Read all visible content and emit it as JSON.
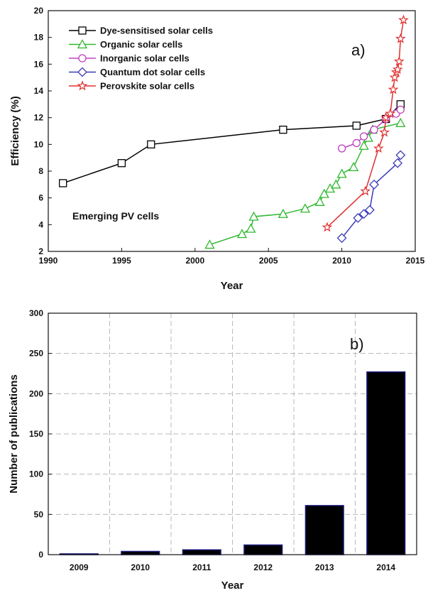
{
  "chart_data": [
    {
      "type": "line",
      "panel_label": "a)",
      "xlabel": "Year",
      "ylabel": "Efficiency (%)",
      "xlim": [
        1990,
        2015
      ],
      "ylim": [
        2,
        20
      ],
      "xticks": [
        1990,
        1995,
        2000,
        2005,
        2010,
        2015
      ],
      "yticks": [
        2,
        4,
        6,
        8,
        10,
        12,
        14,
        16,
        18,
        20
      ],
      "grid": false,
      "legend_position": "top-left",
      "annotation": "Emerging PV cells",
      "series": [
        {
          "name": "Dye-sensitised solar cells",
          "color": "#000000",
          "marker": "square",
          "x": [
            1991,
            1995,
            1997,
            2006,
            2011,
            2013,
            2014
          ],
          "y": [
            7.1,
            8.6,
            10.0,
            11.1,
            11.4,
            11.9,
            13.0
          ]
        },
        {
          "name": "Organic  solar cells",
          "color": "#2eb82e",
          "marker": "triangle",
          "x": [
            2001,
            2003.2,
            2003.8,
            2004,
            2006,
            2007.5,
            2008.5,
            2008.8,
            2009.2,
            2009.6,
            2010,
            2010.8,
            2011.5,
            2011.8,
            2012.1,
            2014
          ],
          "y": [
            2.5,
            3.3,
            3.7,
            4.6,
            4.8,
            5.2,
            5.7,
            6.3,
            6.7,
            7.0,
            7.8,
            8.3,
            9.9,
            10.5,
            11.1,
            11.6
          ]
        },
        {
          "name": "Inorganic solar cells",
          "color": "#c040c0",
          "marker": "circle",
          "x": [
            2010,
            2011,
            2011.5,
            2012.2,
            2013,
            2013.7,
            2014
          ],
          "y": [
            9.7,
            10.1,
            10.6,
            11.1,
            11.9,
            12.3,
            12.6
          ]
        },
        {
          "name": "Quantum dot solar cells",
          "color": "#3a3ab8",
          "marker": "diamond",
          "x": [
            2010,
            2011.1,
            2011.5,
            2011.9,
            2012.2,
            2013.8,
            2014
          ],
          "y": [
            3.0,
            4.5,
            4.8,
            5.1,
            7.0,
            8.6,
            9.2
          ]
        },
        {
          "name": "Perovskite solar cells",
          "color": "#e03030",
          "marker": "star",
          "x": [
            2009,
            2011.6,
            2012.5,
            2012.9,
            2013,
            2013.3,
            2013.5,
            2013.6,
            2013.7,
            2013.8,
            2013.9,
            2014,
            2014.2
          ],
          "y": [
            3.8,
            6.5,
            9.7,
            10.9,
            12.0,
            12.3,
            14.1,
            15.0,
            15.4,
            15.6,
            16.2,
            17.9,
            19.3
          ]
        }
      ]
    },
    {
      "type": "bar",
      "panel_label": "b)",
      "xlabel": "Year",
      "ylabel": "Number of publications",
      "ylim": [
        0,
        300
      ],
      "yticks": [
        0,
        50,
        100,
        150,
        200,
        250,
        300
      ],
      "grid": true,
      "bar_color": "#000000",
      "bar_edge_color": "#1a1a7a",
      "categories": [
        "2009",
        "2010",
        "2011",
        "2012",
        "2013",
        "2014"
      ],
      "values": [
        1,
        4,
        6,
        12,
        61,
        227
      ]
    }
  ]
}
